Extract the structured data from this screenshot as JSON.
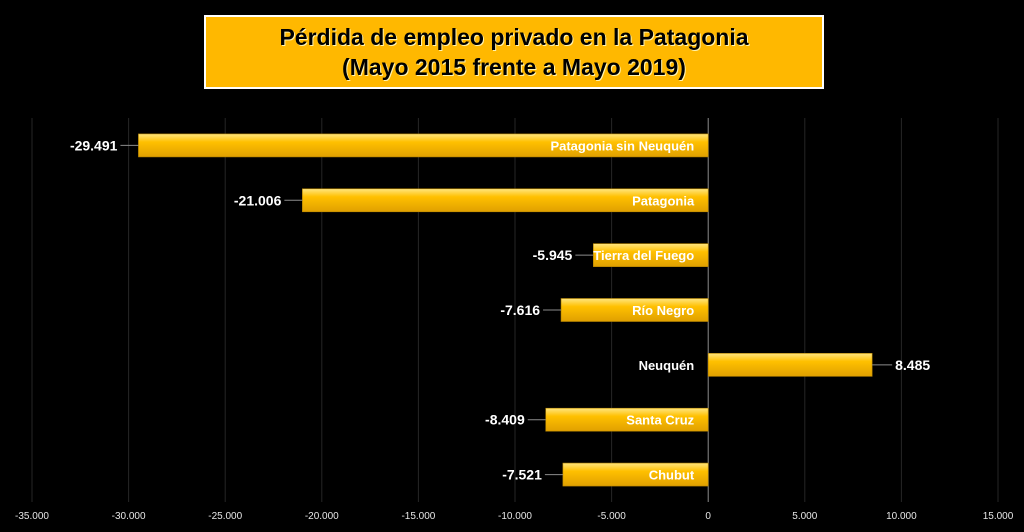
{
  "title_line1": "Pérdida de empleo privado en la Patagonia",
  "title_line2": "(Mayo 2015 frente a Mayo 2019)",
  "chart_data": {
    "type": "bar",
    "orientation": "horizontal",
    "title": "Pérdida de empleo privado en la Patagonia (Mayo 2015 frente a Mayo 2019)",
    "categories": [
      "Patagonia sin Neuquén",
      "Patagonia",
      "Tierra del Fuego",
      "Río Negro",
      "Neuquén",
      "Santa Cruz",
      "Chubut"
    ],
    "values": [
      -29491,
      -21006,
      -5945,
      -7616,
      8485,
      -8409,
      -7521
    ],
    "value_labels": [
      "-29.491",
      "-21.006",
      "-5.945",
      "-7.616",
      "8.485",
      "-8.409",
      "-7.521"
    ],
    "xlim": [
      -35000,
      15000
    ],
    "x_ticks": [
      -35000,
      -30000,
      -25000,
      -20000,
      -15000,
      -10000,
      -5000,
      0,
      5000,
      10000,
      15000
    ],
    "x_tick_labels": [
      "-35.000",
      "-30.000",
      "-25.000",
      "-20.000",
      "-15.000",
      "-10.000",
      "-5.000",
      "0",
      "5.000",
      "10.000",
      "15.000"
    ],
    "grid": "vertical",
    "bar_color": "#FFC000",
    "bar_highlight": "#FFE680",
    "background": "#000000",
    "title_background": "#FFB800"
  }
}
